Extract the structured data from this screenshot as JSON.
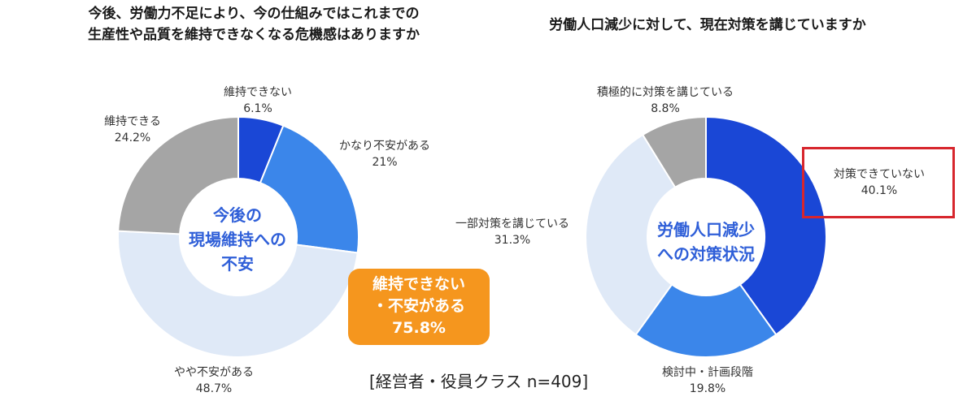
{
  "left": {
    "title_line1": "今後、労働力不足により、今の仕組みではこれまでの",
    "title_line2": "生産性や品質を維持できなくなる危機感はありますか",
    "center_line1": "今後の",
    "center_line2": "現場維持への",
    "center_line3": "不安",
    "callout_line1": "維持できない",
    "callout_line2": "・不安がある",
    "callout_line3": "75.8%"
  },
  "right": {
    "title": "労働人口減少に対して、現在対策を講じていますか",
    "center_line1": "労働人口減少",
    "center_line2": "への対策状況"
  },
  "footnote": "[経営者・役員クラス n=409]",
  "colors": {
    "dark_blue": "#1a47d6",
    "mid_blue": "#3b86ea",
    "light_blue": "#dfe9f7",
    "gray": "#a5a5a5",
    "center_text": "#2f5fd8",
    "callout": "#f5961e",
    "highlight_box": "#d7262d"
  },
  "chart_data": [
    {
      "type": "pie",
      "slices": [
        {
          "label": "維持できない",
          "value": 6.1,
          "value_label": "6.1%",
          "color": "#1a47d6"
        },
        {
          "label": "かなり不安がある",
          "value": 21,
          "value_label": "21%",
          "color": "#3b86ea"
        },
        {
          "label": "やや不安がある",
          "value": 48.7,
          "value_label": "48.7%",
          "color": "#dfe9f7"
        },
        {
          "label": "維持できる",
          "value": 24.2,
          "value_label": "24.2%",
          "color": "#a5a5a5"
        }
      ]
    },
    {
      "type": "pie",
      "slices": [
        {
          "label": "対策できていない",
          "value": 40.1,
          "value_label": "40.1%",
          "color": "#1a47d6"
        },
        {
          "label": "検討中・計画段階",
          "value": 19.8,
          "value_label": "19.8%",
          "color": "#3b86ea"
        },
        {
          "label": "一部対策を講じている",
          "value": 31.3,
          "value_label": "31.3%",
          "color": "#dfe9f7"
        },
        {
          "label": "積極的に対策を講じている",
          "value": 8.8,
          "value_label": "8.8%",
          "color": "#a5a5a5"
        }
      ]
    }
  ]
}
